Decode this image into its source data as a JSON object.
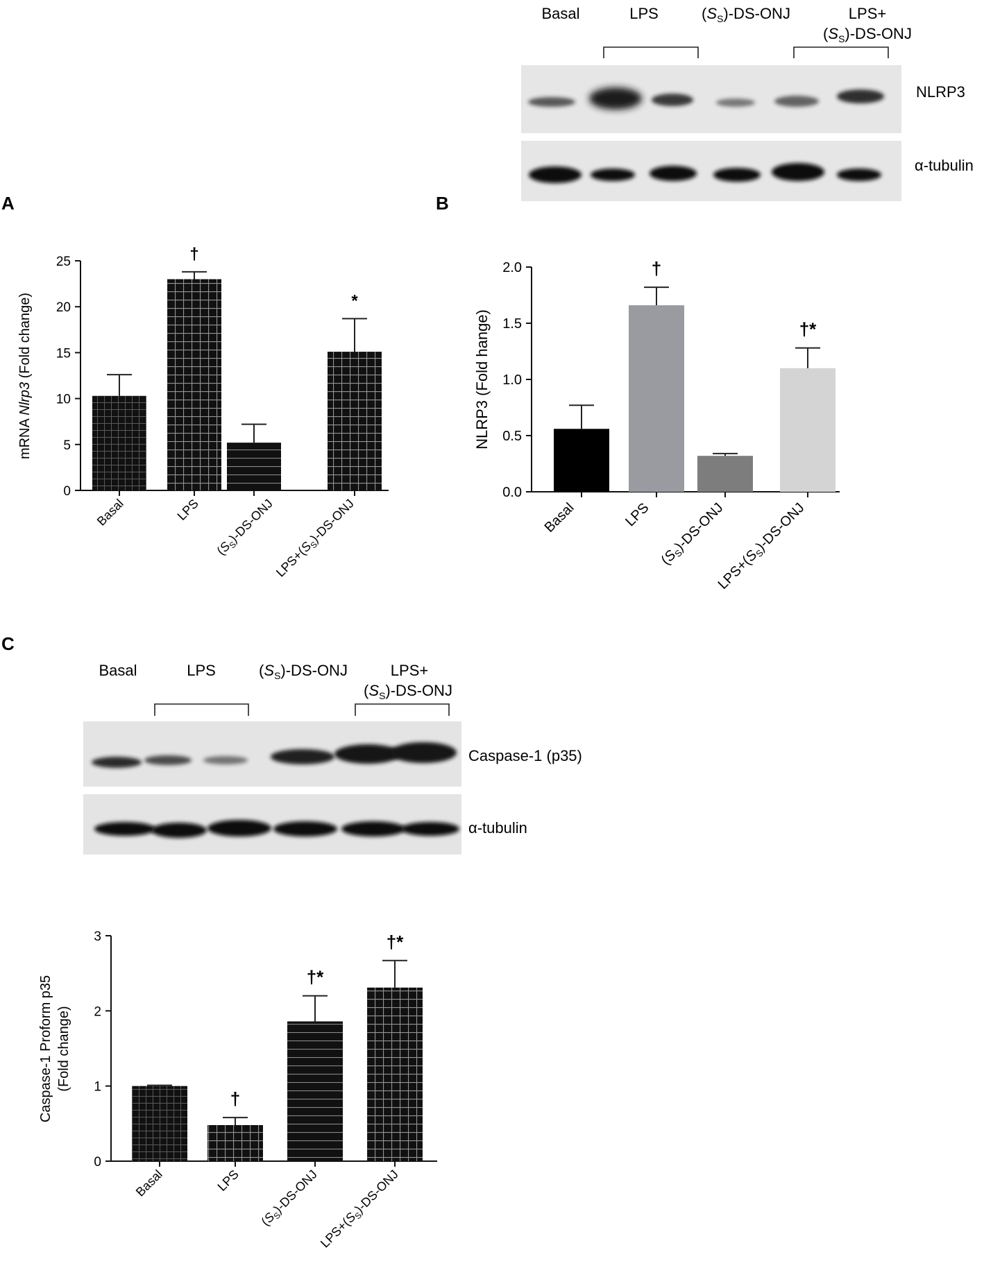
{
  "panels": {
    "A": {
      "letter": "A"
    },
    "B": {
      "letter": "B"
    },
    "C": {
      "letter": "C"
    }
  },
  "blots": {
    "top": {
      "lane_labels": [
        {
          "main": "Basal"
        },
        {
          "main": "LPS"
        },
        {
          "pre": "(",
          "italic": "S",
          "sub": "S",
          "post": ")-DS-ONJ"
        },
        {
          "main": "LPS+",
          "pre": "(",
          "italic": "S",
          "sub": "S",
          "post": ")-DS-ONJ"
        }
      ],
      "rows": [
        "NLRP3",
        "α-tubulin"
      ]
    },
    "c": {
      "lane_labels": [
        {
          "main": "Basal"
        },
        {
          "main": "LPS"
        },
        {
          "pre": "(",
          "italic": "S",
          "sub": "S",
          "post": ")-DS-ONJ"
        },
        {
          "main": "LPS+",
          "pre": "(",
          "italic": "S",
          "sub": "S",
          "post": ")-DS-ONJ"
        }
      ],
      "rows": [
        "Caspase-1 (p35)",
        "α-tubulin"
      ]
    }
  },
  "chart_data": [
    {
      "id": "A",
      "type": "bar",
      "categories": [
        "Basal",
        "LPS",
        "(SS)-DS-ONJ",
        "LPS+(SS)-DS-ONJ"
      ],
      "values": [
        10.3,
        23.0,
        5.2,
        15.1
      ],
      "errors": [
        2.3,
        0.8,
        2.0,
        3.6
      ],
      "annotations": [
        "",
        "†",
        "",
        "*"
      ],
      "ylabel": {
        "pre": "mRNA ",
        "italic": "Nlrp3",
        "post": " (Fold change)"
      },
      "ylim": [
        0,
        25
      ],
      "yticks": [
        0,
        5,
        10,
        15,
        20,
        25
      ],
      "ytick_labels": [
        "0",
        "5",
        "10",
        "15",
        "20",
        "25"
      ],
      "colors": [
        "#111111",
        "#9d9da3",
        "#7d7d7d",
        "#d8d8d8"
      ],
      "patterns": [
        "grid",
        "grid",
        "hlines",
        "grid"
      ]
    },
    {
      "id": "B",
      "type": "bar",
      "categories": [
        "Basal",
        "LPS",
        "(SS)-DS-ONJ",
        "LPS+(SS)-DS-ONJ"
      ],
      "values": [
        0.56,
        1.66,
        0.32,
        1.1
      ],
      "errors": [
        0.21,
        0.16,
        0.02,
        0.18
      ],
      "annotations": [
        "",
        "†",
        "",
        "†*"
      ],
      "ylabel": {
        "pre": "NLRP3 (Fold hange)"
      },
      "ylim": [
        0,
        2.0
      ],
      "yticks": [
        0,
        0.5,
        1.0,
        1.5,
        2.0
      ],
      "ytick_labels": [
        "0.0",
        "0.5",
        "1.0",
        "1.5",
        "2.0"
      ],
      "colors": [
        "#000000",
        "#9a9aa1",
        "#7d7d7d",
        "#d4d4d4"
      ],
      "patterns": [
        "none",
        "none",
        "none",
        "none"
      ]
    },
    {
      "id": "C",
      "type": "bar",
      "categories": [
        "Basal",
        "LPS",
        "(SS)-DS-ONJ",
        "LPS+(SS)-DS-ONJ"
      ],
      "values": [
        1.0,
        0.48,
        1.86,
        2.31
      ],
      "errors": [
        0.01,
        0.1,
        0.34,
        0.36
      ],
      "annotations": [
        "",
        "†",
        "†*",
        "†*"
      ],
      "ylabel": {
        "pre": "Caspase-1 Proform p35",
        "line2": "(Fold change)"
      },
      "ylim": [
        0,
        3
      ],
      "yticks": [
        0,
        1,
        2,
        3
      ],
      "ytick_labels": [
        "0",
        "1",
        "2",
        "3"
      ],
      "colors": [
        "#111111",
        "#9d9da3",
        "#808080",
        "#d8d8d8"
      ],
      "patterns": [
        "grid",
        "grid",
        "hlines",
        "grid"
      ]
    }
  ]
}
